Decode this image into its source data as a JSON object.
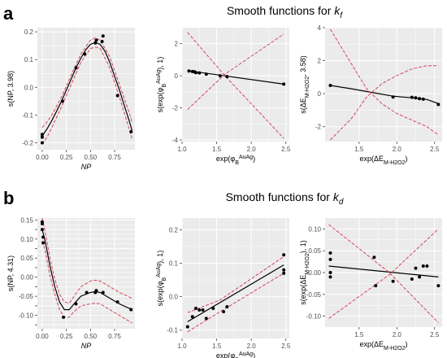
{
  "panels": [
    {
      "letter": "a",
      "title": "Smooth functions for ",
      "k_base": "k",
      "k_sub": "f"
    },
    {
      "letter": "b",
      "title": "Smooth functions for ",
      "k_base": "k",
      "k_sub": "d"
    }
  ],
  "colors": {
    "panel_bg": "#ebebeb",
    "grid": "#ffffff",
    "fit_line": "#000000",
    "ci_line": "#d6435e",
    "point": "#000000"
  },
  "chart_data": [
    {
      "type": "line",
      "panel": "a",
      "xlabel": "NP",
      "ylabel": "s(NP, 3.98)",
      "xlim": [
        -0.05,
        0.96
      ],
      "ylim": [
        -0.225,
        0.215
      ],
      "xticks": [
        0.0,
        0.25,
        0.5,
        0.75
      ],
      "xtick_labels": [
        "0.00",
        "0.25",
        "0.50",
        "0.75"
      ],
      "yticks": [
        -0.2,
        -0.1,
        0.0,
        0.1,
        0.2
      ],
      "ytick_labels": [
        "-0.2",
        "-0.1",
        "0.0",
        "0.1",
        "0.2"
      ],
      "grid": true,
      "series": [
        {
          "role": "fit",
          "x": [
            0.0,
            0.05,
            0.1,
            0.15,
            0.2,
            0.25,
            0.3,
            0.35,
            0.4,
            0.45,
            0.5,
            0.55,
            0.6,
            0.65,
            0.7,
            0.75,
            0.8,
            0.85,
            0.9,
            0.93
          ],
          "y": [
            -0.175,
            -0.15,
            -0.12,
            -0.085,
            -0.05,
            -0.01,
            0.03,
            0.07,
            0.105,
            0.135,
            0.155,
            0.162,
            0.155,
            0.13,
            0.09,
            0.04,
            -0.01,
            -0.065,
            -0.12,
            -0.155
          ]
        },
        {
          "role": "ci_upper",
          "x": [
            0.0,
            0.05,
            0.1,
            0.2,
            0.3,
            0.4,
            0.5,
            0.55,
            0.6,
            0.7,
            0.8,
            0.9,
            0.93
          ],
          "y": [
            -0.145,
            -0.125,
            -0.1,
            -0.035,
            0.045,
            0.12,
            0.17,
            0.178,
            0.17,
            0.11,
            0.01,
            -0.09,
            -0.125
          ]
        },
        {
          "role": "ci_lower",
          "x": [
            0.0,
            0.05,
            0.1,
            0.2,
            0.3,
            0.4,
            0.5,
            0.55,
            0.6,
            0.7,
            0.8,
            0.9,
            0.93
          ],
          "y": [
            -0.205,
            -0.18,
            -0.145,
            -0.07,
            0.01,
            0.09,
            0.14,
            0.145,
            0.14,
            0.07,
            -0.035,
            -0.15,
            -0.185
          ]
        },
        {
          "role": "points",
          "x": [
            0.0,
            0.0,
            0.0,
            0.21,
            0.35,
            0.44,
            0.55,
            0.56,
            0.63,
            0.62,
            0.78,
            0.92
          ],
          "y": [
            -0.2,
            -0.18,
            -0.17,
            -0.05,
            0.07,
            0.12,
            0.16,
            0.17,
            0.185,
            0.165,
            -0.03,
            -0.16
          ]
        }
      ]
    },
    {
      "type": "line",
      "panel": "a",
      "xlabel": "exp(φB^AuAg)",
      "ylabel": "s(exp(φB^AuAg), 1)",
      "xlim": [
        1.0,
        2.55
      ],
      "ylim": [
        -4.1,
        3.0
      ],
      "xticks": [
        1.0,
        1.5,
        2.0,
        2.5
      ],
      "xtick_labels": [
        "1.0",
        "1.5",
        "2.0",
        "2.5"
      ],
      "yticks": [
        -4,
        -2,
        0,
        2
      ],
      "ytick_labels": [
        "-4",
        "-2",
        "0",
        "2"
      ],
      "grid": true,
      "series": [
        {
          "role": "fit",
          "x": [
            1.08,
            2.47
          ],
          "y": [
            0.32,
            -0.52
          ]
        },
        {
          "role": "ci_upper",
          "x": [
            1.08,
            1.62,
            2.47
          ],
          "y": [
            -2.1,
            0.1,
            2.6
          ]
        },
        {
          "role": "ci_lower",
          "x": [
            1.08,
            1.62,
            2.47
          ],
          "y": [
            2.7,
            0.0,
            -3.9
          ]
        },
        {
          "role": "points",
          "x": [
            1.1,
            1.15,
            1.18,
            1.2,
            1.25,
            1.35,
            1.55,
            1.65,
            2.47
          ],
          "y": [
            0.3,
            0.27,
            0.25,
            0.2,
            0.18,
            0.1,
            0.0,
            -0.05,
            -0.52
          ]
        }
      ]
    },
    {
      "type": "line",
      "panel": "a",
      "xlabel": "exp(ΔE_M-H2O2)",
      "ylabel": "s(ΔE_M-H2O2, 3.58)",
      "xlim": [
        1.05,
        2.6
      ],
      "ylim": [
        -2.9,
        4.0
      ],
      "xticks": [
        1.5,
        2.0,
        2.5
      ],
      "xtick_labels": [
        "1.5",
        "2.0",
        "2.5"
      ],
      "yticks": [
        -2,
        0,
        2,
        4
      ],
      "ytick_labels": [
        "-2",
        "0",
        "2",
        "4"
      ],
      "grid": true,
      "series": [
        {
          "role": "fit",
          "x": [
            1.12,
            1.4,
            1.7,
            1.95,
            2.2,
            2.4,
            2.55
          ],
          "y": [
            0.5,
            0.3,
            0.05,
            -0.15,
            -0.25,
            -0.35,
            -0.6
          ]
        },
        {
          "role": "ci_upper",
          "x": [
            1.12,
            1.4,
            1.6,
            1.8,
            2.0,
            2.2,
            2.4,
            2.55
          ],
          "y": [
            3.9,
            1.8,
            0.3,
            -0.6,
            -1.2,
            -1.6,
            -2.0,
            -2.5
          ]
        },
        {
          "role": "ci_lower",
          "x": [
            1.12,
            1.4,
            1.6,
            1.8,
            2.0,
            2.2,
            2.4,
            2.55
          ],
          "y": [
            -2.8,
            -1.5,
            -0.2,
            0.6,
            1.1,
            1.5,
            1.7,
            1.7
          ]
        },
        {
          "role": "points",
          "x": [
            1.12,
            1.95,
            2.2,
            2.25,
            2.3,
            2.35,
            2.55
          ],
          "y": [
            0.5,
            -0.2,
            -0.22,
            -0.25,
            -0.3,
            -0.33,
            -0.65
          ]
        }
      ]
    },
    {
      "type": "line",
      "panel": "b",
      "xlabel": "NP",
      "ylabel": "s(NP, 4.31)",
      "xlim": [
        -0.05,
        0.96
      ],
      "ylim": [
        -0.135,
        0.155
      ],
      "xticks": [
        0.0,
        0.25,
        0.5,
        0.75
      ],
      "xtick_labels": [
        "0.00",
        "0.25",
        "0.50",
        "0.75"
      ],
      "yticks": [
        -0.125,
        -0.1,
        -0.075,
        -0.05,
        -0.025,
        0.0,
        0.025,
        0.05,
        0.075,
        0.1,
        0.125,
        0.15
      ],
      "ytick_labels": [
        "",
        "-0.10",
        "",
        "-0.05",
        "",
        "0.00",
        "",
        "0.05",
        "",
        "0.10",
        "",
        "0.15"
      ],
      "grid": true,
      "series": [
        {
          "role": "fit",
          "x": [
            0.0,
            0.03,
            0.08,
            0.13,
            0.18,
            0.23,
            0.28,
            0.33,
            0.4,
            0.5,
            0.55,
            0.6,
            0.7,
            0.8,
            0.93
          ],
          "y": [
            0.125,
            0.095,
            0.03,
            -0.025,
            -0.065,
            -0.085,
            -0.085,
            -0.07,
            -0.05,
            -0.04,
            -0.038,
            -0.04,
            -0.055,
            -0.07,
            -0.085
          ]
        },
        {
          "role": "ci_upper",
          "x": [
            0.0,
            0.03,
            0.08,
            0.13,
            0.18,
            0.23,
            0.28,
            0.33,
            0.4,
            0.5,
            0.55,
            0.6,
            0.7,
            0.8,
            0.93
          ],
          "y": [
            0.155,
            0.12,
            0.05,
            -0.005,
            -0.045,
            -0.065,
            -0.068,
            -0.05,
            -0.025,
            -0.01,
            -0.008,
            -0.01,
            -0.025,
            -0.04,
            -0.055
          ]
        },
        {
          "role": "ci_lower",
          "x": [
            0.0,
            0.03,
            0.08,
            0.13,
            0.18,
            0.23,
            0.28,
            0.33,
            0.4,
            0.5,
            0.55,
            0.6,
            0.7,
            0.8,
            0.93
          ],
          "y": [
            0.095,
            0.07,
            0.005,
            -0.045,
            -0.085,
            -0.105,
            -0.105,
            -0.09,
            -0.075,
            -0.07,
            -0.068,
            -0.07,
            -0.085,
            -0.1,
            -0.12
          ]
        },
        {
          "role": "points",
          "x": [
            0.0,
            0.0,
            0.0,
            0.01,
            0.01,
            0.22,
            0.35,
            0.46,
            0.55,
            0.56,
            0.63,
            0.78,
            0.92
          ],
          "y": [
            0.14,
            0.145,
            0.125,
            0.105,
            0.09,
            -0.105,
            -0.07,
            -0.04,
            -0.04,
            -0.035,
            -0.04,
            -0.065,
            -0.085
          ]
        }
      ]
    },
    {
      "type": "line",
      "panel": "b",
      "xlabel": "exp(φB^AuAg)",
      "ylabel": "s(exp(φB^AuAg), 1)",
      "xlim": [
        1.0,
        2.55
      ],
      "ylim": [
        -0.125,
        0.235
      ],
      "xticks": [
        1.0,
        1.5,
        2.0,
        2.5
      ],
      "xtick_labels": [
        "1.0",
        "1.5",
        "2.0",
        "2.5"
      ],
      "yticks": [
        -0.1,
        0.0,
        0.1,
        0.2
      ],
      "ytick_labels": [
        "-0.1",
        "0.0",
        "0.1",
        "0.2"
      ],
      "grid": true,
      "series": [
        {
          "role": "fit",
          "x": [
            1.08,
            2.47
          ],
          "y": [
            -0.075,
            0.095
          ]
        },
        {
          "role": "ci_upper",
          "x": [
            1.08,
            1.55,
            2.47
          ],
          "y": [
            -0.048,
            -0.01,
            0.12
          ]
        },
        {
          "role": "ci_lower",
          "x": [
            1.08,
            1.55,
            2.47
          ],
          "y": [
            -0.105,
            -0.045,
            0.07
          ]
        },
        {
          "role": "points",
          "x": [
            1.08,
            1.15,
            1.2,
            1.25,
            1.3,
            1.35,
            1.45,
            1.6,
            1.65,
            2.47,
            2.47,
            2.47
          ],
          "y": [
            -0.09,
            -0.06,
            -0.035,
            -0.04,
            -0.04,
            -0.065,
            -0.035,
            -0.045,
            -0.03,
            0.125,
            0.08,
            0.07
          ]
        }
      ]
    },
    {
      "type": "line",
      "panel": "b",
      "xlabel": "exp(ΔE_M-H2O2)",
      "ylabel": "s(exp(ΔE_M-H2O2), 1)",
      "xlim": [
        1.05,
        2.6
      ],
      "ylim": [
        -0.125,
        0.125
      ],
      "xticks": [
        1.5,
        2.0,
        2.5
      ],
      "xtick_labels": [
        "1.5",
        "2.0",
        "2.5"
      ],
      "yticks": [
        -0.1,
        -0.05,
        0.0,
        0.05,
        0.1
      ],
      "ytick_labels": [
        "-0.10",
        "-0.05",
        "0.00",
        "0.05",
        "0.10"
      ],
      "grid": true,
      "series": [
        {
          "role": "fit",
          "x": [
            1.1,
            2.55
          ],
          "y": [
            0.015,
            -0.01
          ]
        },
        {
          "role": "ci_upper",
          "x": [
            1.1,
            1.9,
            2.55
          ],
          "y": [
            0.11,
            0.0,
            -0.115
          ]
        },
        {
          "role": "ci_lower",
          "x": [
            1.1,
            1.9,
            2.55
          ],
          "y": [
            -0.105,
            -0.005,
            0.1
          ]
        },
        {
          "role": "points",
          "x": [
            1.12,
            1.12,
            1.12,
            1.12,
            1.7,
            1.72,
            1.95,
            2.2,
            2.25,
            2.3,
            2.35,
            2.4,
            2.55
          ],
          "y": [
            0.045,
            0.03,
            0.0,
            -0.01,
            0.035,
            -0.03,
            -0.02,
            -0.015,
            0.01,
            -0.01,
            0.015,
            0.015,
            -0.03
          ]
        }
      ]
    }
  ]
}
